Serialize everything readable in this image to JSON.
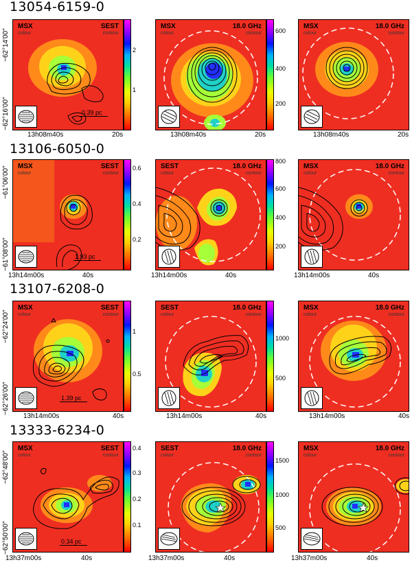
{
  "rows": [
    {
      "source": "13054-6159-0",
      "panels": [
        {
          "left_label": "MSX",
          "left_sub": "colour",
          "right_label": "SEST",
          "right_sub": "contour"
        },
        {
          "left_label": "MSX",
          "left_sub": "colour",
          "right_label": "18.0 GHz",
          "right_sub": "contour"
        },
        {
          "left_label": "MSX",
          "left_sub": "colour",
          "right_label": "18.0 GHz",
          "right_sub": "contour"
        }
      ],
      "colorbar1": [
        "2",
        "1"
      ],
      "colorbar2": [
        "600",
        "400",
        "200"
      ],
      "xticks": [
        "13h08m40s",
        "20s"
      ],
      "yticks": [
        "−62°14′00″",
        "−62°16′00″"
      ],
      "scale_bar": "0.39 pc"
    },
    {
      "source": "13106-6050-0",
      "panels": [
        {
          "left_label": "MSX",
          "left_sub": "colour",
          "right_label": "SEST",
          "right_sub": "contour"
        },
        {
          "left_label": "SEST",
          "left_sub": "colour",
          "right_label": "18.0 GHz",
          "right_sub": "contour"
        },
        {
          "left_label": "MSX",
          "left_sub": "colour",
          "right_label": "18.0 GHz",
          "right_sub": "contour"
        }
      ],
      "colorbar1": [
        "0.6",
        "0.4",
        "0.2"
      ],
      "colorbar2": [
        "800",
        "600",
        "400",
        "200"
      ],
      "xticks": [
        "13h14m00s",
        "40s"
      ],
      "yticks": [
        "−61°06′00″",
        "−61°08′00″"
      ],
      "scale_bar": "1.93 pc"
    },
    {
      "source": "13107-6208-0",
      "panels": [
        {
          "left_label": "MSX",
          "left_sub": "colour",
          "right_label": "SEST",
          "right_sub": "contour"
        },
        {
          "left_label": "SEST",
          "left_sub": "colour",
          "right_label": "18.0 GHz",
          "right_sub": "contour"
        },
        {
          "left_label": "MSX",
          "left_sub": "colour",
          "right_label": "18.0 GHz",
          "right_sub": "contour"
        }
      ],
      "colorbar1": [
        "1",
        "0.5"
      ],
      "colorbar2": [
        "1000",
        "500"
      ],
      "xticks": [
        "13h14m00s",
        "40s"
      ],
      "yticks": [
        "−62°24′00″",
        "−62°26′00″"
      ],
      "scale_bar": "1.39 pc"
    },
    {
      "source": "13333-6234-0",
      "panels": [
        {
          "left_label": "MSX",
          "left_sub": "colour",
          "right_label": "SEST",
          "right_sub": "contour"
        },
        {
          "left_label": "SEST",
          "left_sub": "colour",
          "right_label": "18.0 GHz",
          "right_sub": "contour"
        },
        {
          "left_label": "MSX",
          "left_sub": "colour",
          "right_label": "18.0 GHz",
          "right_sub": "contour"
        }
      ],
      "colorbar1": [
        "0.4",
        "0.3",
        "0.2",
        "0.1"
      ],
      "colorbar2": [
        "1500",
        "1000",
        "500"
      ],
      "xticks": [
        "13h37m00s",
        "40s"
      ],
      "yticks": [
        "−62°48′00″",
        "−62°50′00″"
      ],
      "scale_bar": "0.34 pc"
    }
  ]
}
